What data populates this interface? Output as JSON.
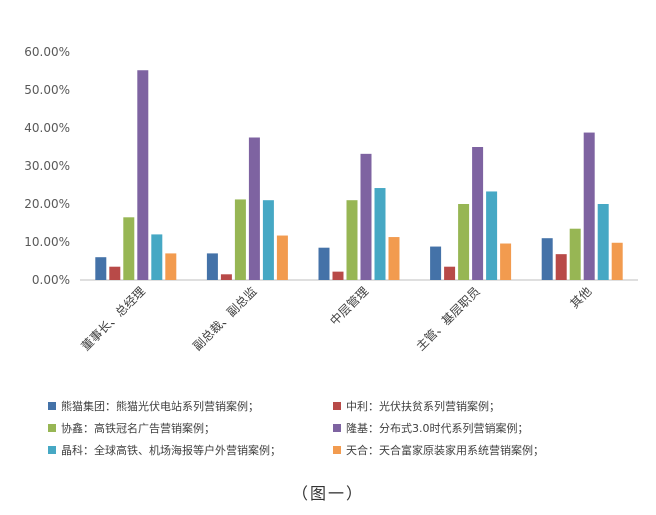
{
  "chart_data": {
    "type": "bar",
    "categories": [
      "董事长、总经理",
      "副总裁、副总监",
      "中层管理",
      "主管、基层职员",
      "其他"
    ],
    "series": [
      {
        "name": "熊猫集团：熊猫光伏电站系列营销案例；",
        "color": "#4472a8",
        "values": [
          6.0,
          7.0,
          8.5,
          8.8,
          11.0
        ]
      },
      {
        "name": "中利：光伏扶贫系列营销案例；",
        "color": "#b84a48",
        "values": [
          3.5,
          1.5,
          2.2,
          3.5,
          6.8
        ]
      },
      {
        "name": "协鑫：高铁冠名广告营销案例；",
        "color": "#97b654",
        "values": [
          16.5,
          21.2,
          21.0,
          20.0,
          13.5
        ]
      },
      {
        "name": "隆基：分布式3.0时代系列营销案例；",
        "color": "#7e63a1",
        "values": [
          55.2,
          37.5,
          33.2,
          35.0,
          38.8
        ]
      },
      {
        "name": "晶科：全球高铁、机场海报等户外营销案例；",
        "color": "#46a8c4",
        "values": [
          12.0,
          21.0,
          24.2,
          23.3,
          20.0
        ]
      },
      {
        "name": "天合：天合富家原装家用系统营销案例；",
        "color": "#f29b4f",
        "values": [
          7.0,
          11.7,
          11.3,
          9.6,
          9.8
        ]
      }
    ],
    "yticks": [
      "0.00%",
      "10.00%",
      "20.00%",
      "30.00%",
      "40.00%",
      "50.00%",
      "60.00%"
    ],
    "ylim": [
      0,
      60
    ],
    "grid": false,
    "legend": "bottom"
  },
  "caption": "（图一）"
}
